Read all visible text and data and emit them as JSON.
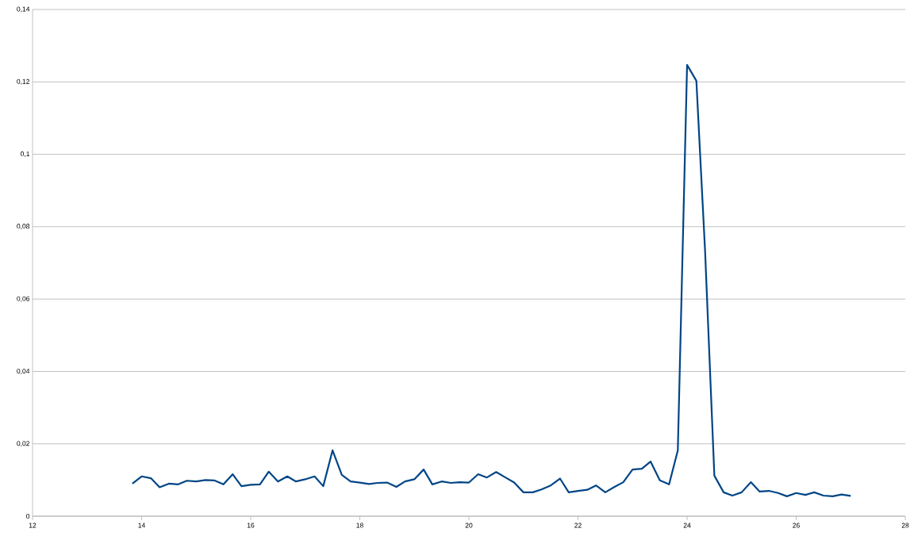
{
  "chart_data": {
    "type": "line",
    "x": [
      13.83,
      14.0,
      14.17,
      14.33,
      14.5,
      14.67,
      14.83,
      15.0,
      15.17,
      15.33,
      15.5,
      15.67,
      15.83,
      16.0,
      16.17,
      16.33,
      16.5,
      16.67,
      16.83,
      17.0,
      17.17,
      17.33,
      17.5,
      17.67,
      17.83,
      18.0,
      18.17,
      18.33,
      18.5,
      18.67,
      18.83,
      19.0,
      19.17,
      19.33,
      19.5,
      19.67,
      19.83,
      20.0,
      20.17,
      20.33,
      20.5,
      20.67,
      20.83,
      21.0,
      21.17,
      21.33,
      21.5,
      21.67,
      21.83,
      22.0,
      22.17,
      22.33,
      22.5,
      22.67,
      22.83,
      23.0,
      23.17,
      23.33,
      23.5,
      23.67,
      23.83,
      24.0,
      24.17,
      24.33,
      24.5,
      24.67,
      24.83,
      25.0,
      25.17,
      25.33,
      25.5,
      25.67,
      25.83,
      26.0,
      26.17,
      26.33,
      26.5,
      26.67,
      26.83,
      27.0
    ],
    "series": [
      {
        "color": "#004586",
        "values": [
          0.009,
          0.011,
          0.0105,
          0.008,
          0.009,
          0.0088,
          0.0098,
          0.0096,
          0.01,
          0.0099,
          0.0088,
          0.0116,
          0.0083,
          0.0087,
          0.0088,
          0.0123,
          0.0096,
          0.011,
          0.0096,
          0.0102,
          0.011,
          0.0083,
          0.0182,
          0.0114,
          0.0096,
          0.0093,
          0.0089,
          0.0092,
          0.0093,
          0.0081,
          0.0096,
          0.0102,
          0.0129,
          0.0088,
          0.0096,
          0.0092,
          0.0094,
          0.0093,
          0.0116,
          0.0107,
          0.0122,
          0.0107,
          0.0093,
          0.0066,
          0.0066,
          0.0074,
          0.0085,
          0.0104,
          0.0066,
          0.007,
          0.0073,
          0.0085,
          0.0066,
          0.0081,
          0.0094,
          0.0129,
          0.0131,
          0.0151,
          0.0099,
          0.0088,
          0.0182,
          0.1247,
          0.1203,
          0.0732,
          0.0112,
          0.0066,
          0.0057,
          0.0066,
          0.0094,
          0.0068,
          0.007,
          0.0064,
          0.0055,
          0.0064,
          0.0059,
          0.0066,
          0.0057,
          0.0055,
          0.006,
          0.0056
        ]
      }
    ],
    "xlim": [
      12,
      28
    ],
    "xticks": [
      12,
      14,
      16,
      18,
      20,
      22,
      24,
      26,
      28
    ],
    "ylim": [
      0,
      0.14
    ],
    "yticks": [
      0,
      {
        "value": 0.02,
        "label": "0,02"
      },
      {
        "value": 0.04,
        "label": "0,04"
      },
      {
        "value": 0.06,
        "label": "0,06"
      },
      {
        "value": 0.08,
        "label": "0,08"
      },
      {
        "value": 0.1,
        "label": "0,1"
      },
      {
        "value": 0.12,
        "label": "0,12"
      },
      {
        "value": 0.14,
        "label": "0,14"
      }
    ],
    "grid": "y",
    "marker": "none",
    "line_style": "solid"
  }
}
